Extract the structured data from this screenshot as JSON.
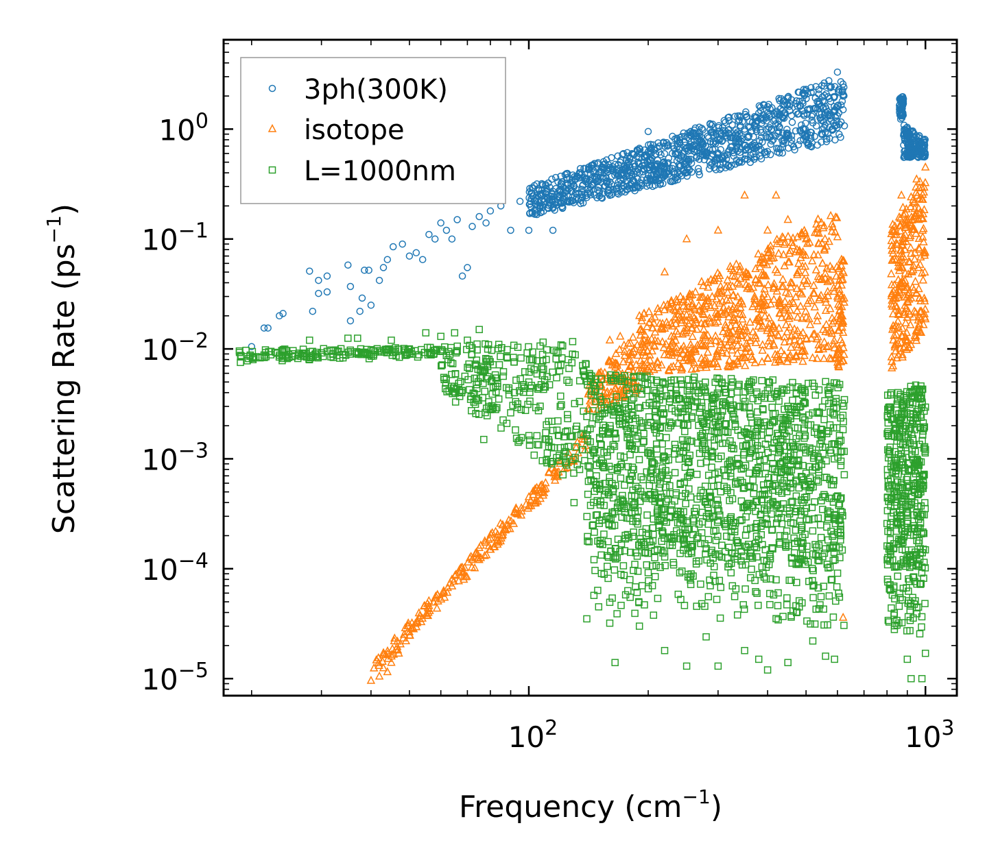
{
  "chart_data": {
    "type": "scatter",
    "xscale": "log",
    "yscale": "log",
    "xlim": [
      17,
      1200
    ],
    "ylim": [
      7e-06,
      6.5
    ],
    "xlabel": "Frequency (cm",
    "xlabel_sup": "−1",
    "xlabel_end": ")",
    "ylabel": "Scattering Rate (ps",
    "ylabel_sup": "−1",
    "ylabel_end": ")",
    "x_ticks": [
      {
        "value": 100,
        "base": "10",
        "exp": "2"
      },
      {
        "value": 1000,
        "base": "10",
        "exp": "3"
      }
    ],
    "y_ticks": [
      {
        "value": 1e-05,
        "base": "10",
        "exp": "−5"
      },
      {
        "value": 0.0001,
        "base": "10",
        "exp": "−4"
      },
      {
        "value": 0.001,
        "base": "10",
        "exp": "−3"
      },
      {
        "value": 0.01,
        "base": "10",
        "exp": "−2"
      },
      {
        "value": 0.1,
        "base": "10",
        "exp": "−1"
      },
      {
        "value": 1,
        "base": "10",
        "exp": "0"
      }
    ],
    "legend_position": "top-left",
    "series": [
      {
        "name": "3ph(300K)",
        "marker": "circle",
        "color": "#1f77b4",
        "points": [
          [
            20,
            0.0105
          ],
          [
            21.5,
            0.0155
          ],
          [
            22,
            0.0155
          ],
          [
            23.5,
            0.02
          ],
          [
            24,
            0.021
          ],
          [
            28,
            0.051
          ],
          [
            28.5,
            0.022
          ],
          [
            29.5,
            0.042
          ],
          [
            29.5,
            0.032
          ],
          [
            31,
            0.046
          ],
          [
            31,
            0.033
          ],
          [
            35,
            0.058
          ],
          [
            35.5,
            0.037
          ],
          [
            35.5,
            0.018
          ],
          [
            37.5,
            0.022
          ],
          [
            38,
            0.029
          ],
          [
            38.5,
            0.052
          ],
          [
            39.5,
            0.052
          ],
          [
            40,
            0.025
          ],
          [
            42,
            0.042
          ],
          [
            43,
            0.055
          ],
          [
            44,
            0.065
          ],
          [
            45.5,
            0.085
          ],
          [
            48,
            0.09
          ],
          [
            50,
            0.07
          ],
          [
            52,
            0.075
          ],
          [
            54,
            0.065
          ],
          [
            56,
            0.11
          ],
          [
            58,
            0.1
          ],
          [
            60,
            0.14
          ],
          [
            62,
            0.12
          ],
          [
            64,
            0.1
          ],
          [
            66,
            0.15
          ],
          [
            68,
            0.046
          ],
          [
            70,
            0.055
          ],
          [
            72,
            0.13
          ],
          [
            75,
            0.16
          ],
          [
            78,
            0.14
          ],
          [
            80,
            0.18
          ],
          [
            85,
            0.2
          ],
          [
            90,
            0.12
          ],
          [
            95,
            0.22
          ],
          [
            100,
            0.12
          ],
          [
            105,
            0.25
          ],
          [
            110,
            0.26
          ],
          [
            115,
            0.12
          ],
          [
            120,
            0.28
          ],
          [
            130,
            0.3
          ],
          [
            140,
            0.35
          ],
          [
            150,
            0.4
          ],
          [
            160,
            0.25
          ],
          [
            170,
            0.5
          ],
          [
            180,
            0.45
          ],
          [
            190,
            0.6
          ],
          [
            200,
            0.95
          ],
          [
            210,
            0.4
          ],
          [
            220,
            0.7
          ],
          [
            230,
            0.6
          ],
          [
            240,
            0.8
          ],
          [
            250,
            0.5
          ],
          [
            260,
            0.9
          ],
          [
            280,
            0.6
          ],
          [
            300,
            0.8
          ],
          [
            320,
            0.9
          ],
          [
            350,
            1.0
          ],
          [
            380,
            1.4
          ],
          [
            400,
            1.6
          ],
          [
            450,
            1.9
          ],
          [
            500,
            2.3
          ],
          [
            550,
            1.0
          ],
          [
            600,
            3.3
          ],
          [
            620,
            1.5
          ]
        ],
        "bands": [
          {
            "x": [
              100,
              625
            ],
            "ylo": [
              0.16,
              0.8
            ],
            "yhi": [
              0.3,
              3.1
            ],
            "n": 1100
          },
          {
            "x": [
              860,
              880
            ],
            "ylo": [
              1.2,
              1.3
            ],
            "yhi": [
              1.9,
              2.0
            ],
            "n": 60
          },
          {
            "x": [
              880,
              1000
            ],
            "ylo": [
              0.55,
              0.55
            ],
            "yhi": [
              1.1,
              0.8
            ],
            "n": 160
          }
        ]
      },
      {
        "name": "isotope",
        "marker": "triangle",
        "color": "#ff7f0e",
        "points": [
          [
            40,
            9.6e-06
          ],
          [
            42,
            1.05e-05
          ],
          [
            43,
            1.25e-05
          ],
          [
            44,
            1.15e-05
          ],
          [
            45,
            1.4e-05
          ],
          [
            47,
            1.7e-05
          ],
          [
            49,
            2.2e-05
          ],
          [
            51,
            2.9e-05
          ],
          [
            53,
            3.5e-05
          ],
          [
            56,
            4.6e-05
          ],
          [
            58,
            5.4e-05
          ],
          [
            61,
            6.3e-05
          ],
          [
            64,
            8e-05
          ],
          [
            67,
            9.9e-05
          ],
          [
            71,
            0.000125
          ],
          [
            75,
            0.000155
          ],
          [
            80,
            0.00019
          ],
          [
            86,
            0.00025
          ],
          [
            92,
            0.00033
          ],
          [
            100,
            0.00045
          ],
          [
            108,
            0.00058
          ],
          [
            118,
            0.00075
          ],
          [
            128,
            0.00095
          ],
          [
            138,
            0.0015
          ],
          [
            150,
            0.006
          ],
          [
            160,
            0.012
          ],
          [
            170,
            0.013
          ],
          [
            180,
            0.008
          ],
          [
            190,
            0.02
          ],
          [
            200,
            0.012
          ],
          [
            220,
            0.05
          ],
          [
            250,
            0.1
          ],
          [
            300,
            0.12
          ],
          [
            350,
            0.25
          ],
          [
            400,
            0.12
          ],
          [
            420,
            0.25
          ],
          [
            450,
            0.15
          ],
          [
            500,
            0.1
          ],
          [
            550,
            0.06
          ],
          [
            600,
            0.03
          ],
          [
            620,
            3.6e-05
          ],
          [
            870,
            0.25
          ],
          [
            900,
            0.15
          ],
          [
            950,
            0.35
          ],
          [
            1000,
            0.45
          ]
        ],
        "bands": [
          {
            "x": [
              40,
              140
            ],
            "ylo": [
              1e-05,
              0.0012
            ],
            "yhi": [
              1.4e-05,
              0.0018
            ],
            "n": 200
          },
          {
            "x": [
              140,
              190
            ],
            "ylo": [
              0.0025,
              0.004
            ],
            "yhi": [
              0.005,
              0.015
            ],
            "n": 120
          },
          {
            "x": [
              190,
              600
            ],
            "ylo": [
              0.006,
              0.008
            ],
            "yhi": [
              0.02,
              0.2
            ],
            "n": 700
          },
          {
            "x": [
              600,
              625
            ],
            "ylo": [
              0.006,
              0.008
            ],
            "yhi": [
              0.05,
              0.08
            ],
            "n": 60
          },
          {
            "x": [
              820,
              1000
            ],
            "ylo": [
              0.006,
              0.015
            ],
            "yhi": [
              0.15,
              0.4
            ],
            "n": 260
          }
        ]
      },
      {
        "name": "L=1000nm",
        "marker": "square",
        "color": "#2ca02c",
        "points": [
          [
            19.5,
            0.0078
          ],
          [
            20.5,
            0.0085
          ],
          [
            21.5,
            0.0088
          ],
          [
            23,
            0.0093
          ],
          [
            24,
            0.0094
          ],
          [
            27,
            0.0088
          ],
          [
            28,
            0.012
          ],
          [
            29,
            0.009
          ],
          [
            31,
            0.0095
          ],
          [
            34,
            0.0083
          ],
          [
            35,
            0.0125
          ],
          [
            37,
            0.0125
          ],
          [
            40,
            0.009
          ],
          [
            45,
            0.012
          ],
          [
            50,
            0.01
          ],
          [
            55,
            0.014
          ],
          [
            60,
            0.013
          ],
          [
            65,
            0.014
          ],
          [
            70,
            0.012
          ],
          [
            75,
            0.015
          ],
          [
            77,
            0.0015
          ],
          [
            80,
            0.0028
          ],
          [
            84,
            0.0035
          ],
          [
            88,
            0.0021
          ],
          [
            92,
            0.004
          ],
          [
            100,
            0.005
          ],
          [
            110,
            0.0045
          ],
          [
            120,
            0.003
          ],
          [
            130,
            0.0004
          ],
          [
            140,
            3.5e-05
          ],
          [
            150,
            4.5e-05
          ],
          [
            160,
            3.2e-05
          ],
          [
            165,
            1.4e-05
          ],
          [
            190,
            3e-05
          ],
          [
            220,
            1.8e-05
          ],
          [
            250,
            1.3e-05
          ],
          [
            280,
            2.4e-05
          ],
          [
            300,
            1.3e-05
          ],
          [
            350,
            1.8e-05
          ],
          [
            380,
            1.5e-05
          ],
          [
            400,
            1.2e-05
          ],
          [
            450,
            1.4e-05
          ],
          [
            520,
            2.2e-05
          ],
          [
            560,
            1.6e-05
          ],
          [
            590,
            1.5e-05
          ],
          [
            900,
            1.5e-05
          ],
          [
            920,
            1e-05
          ],
          [
            980,
            1e-05
          ],
          [
            1000,
            1.7e-05
          ]
        ],
        "bands": [
          {
            "x": [
              18.5,
              60
            ],
            "ylo": [
              0.0075,
              0.0085
            ],
            "yhi": [
              0.0098,
              0.0105
            ],
            "n": 160
          },
          {
            "x": [
              60,
              140
            ],
            "ylo": [
              0.004,
              0.0005
            ],
            "yhi": [
              0.011,
              0.012
            ],
            "n": 300
          },
          {
            "x": [
              140,
              625
            ],
            "ylo": [
              0.00015,
              0.0001
            ],
            "yhi": [
              0.006,
              0.005
            ],
            "n": 1400
          },
          {
            "x": [
              140,
              625
            ],
            "ylo": [
              4e-05,
              3e-05
            ],
            "yhi": [
              0.00015,
              0.00012
            ],
            "n": 180
          },
          {
            "x": [
              800,
              1000
            ],
            "ylo": [
              0.0001,
              0.0001
            ],
            "yhi": [
              0.004,
              0.005
            ],
            "n": 400
          },
          {
            "x": [
              800,
              1000
            ],
            "ylo": [
              2.5e-05,
              2.5e-05
            ],
            "yhi": [
              0.0001,
              0.0001
            ],
            "n": 60
          }
        ]
      }
    ]
  }
}
